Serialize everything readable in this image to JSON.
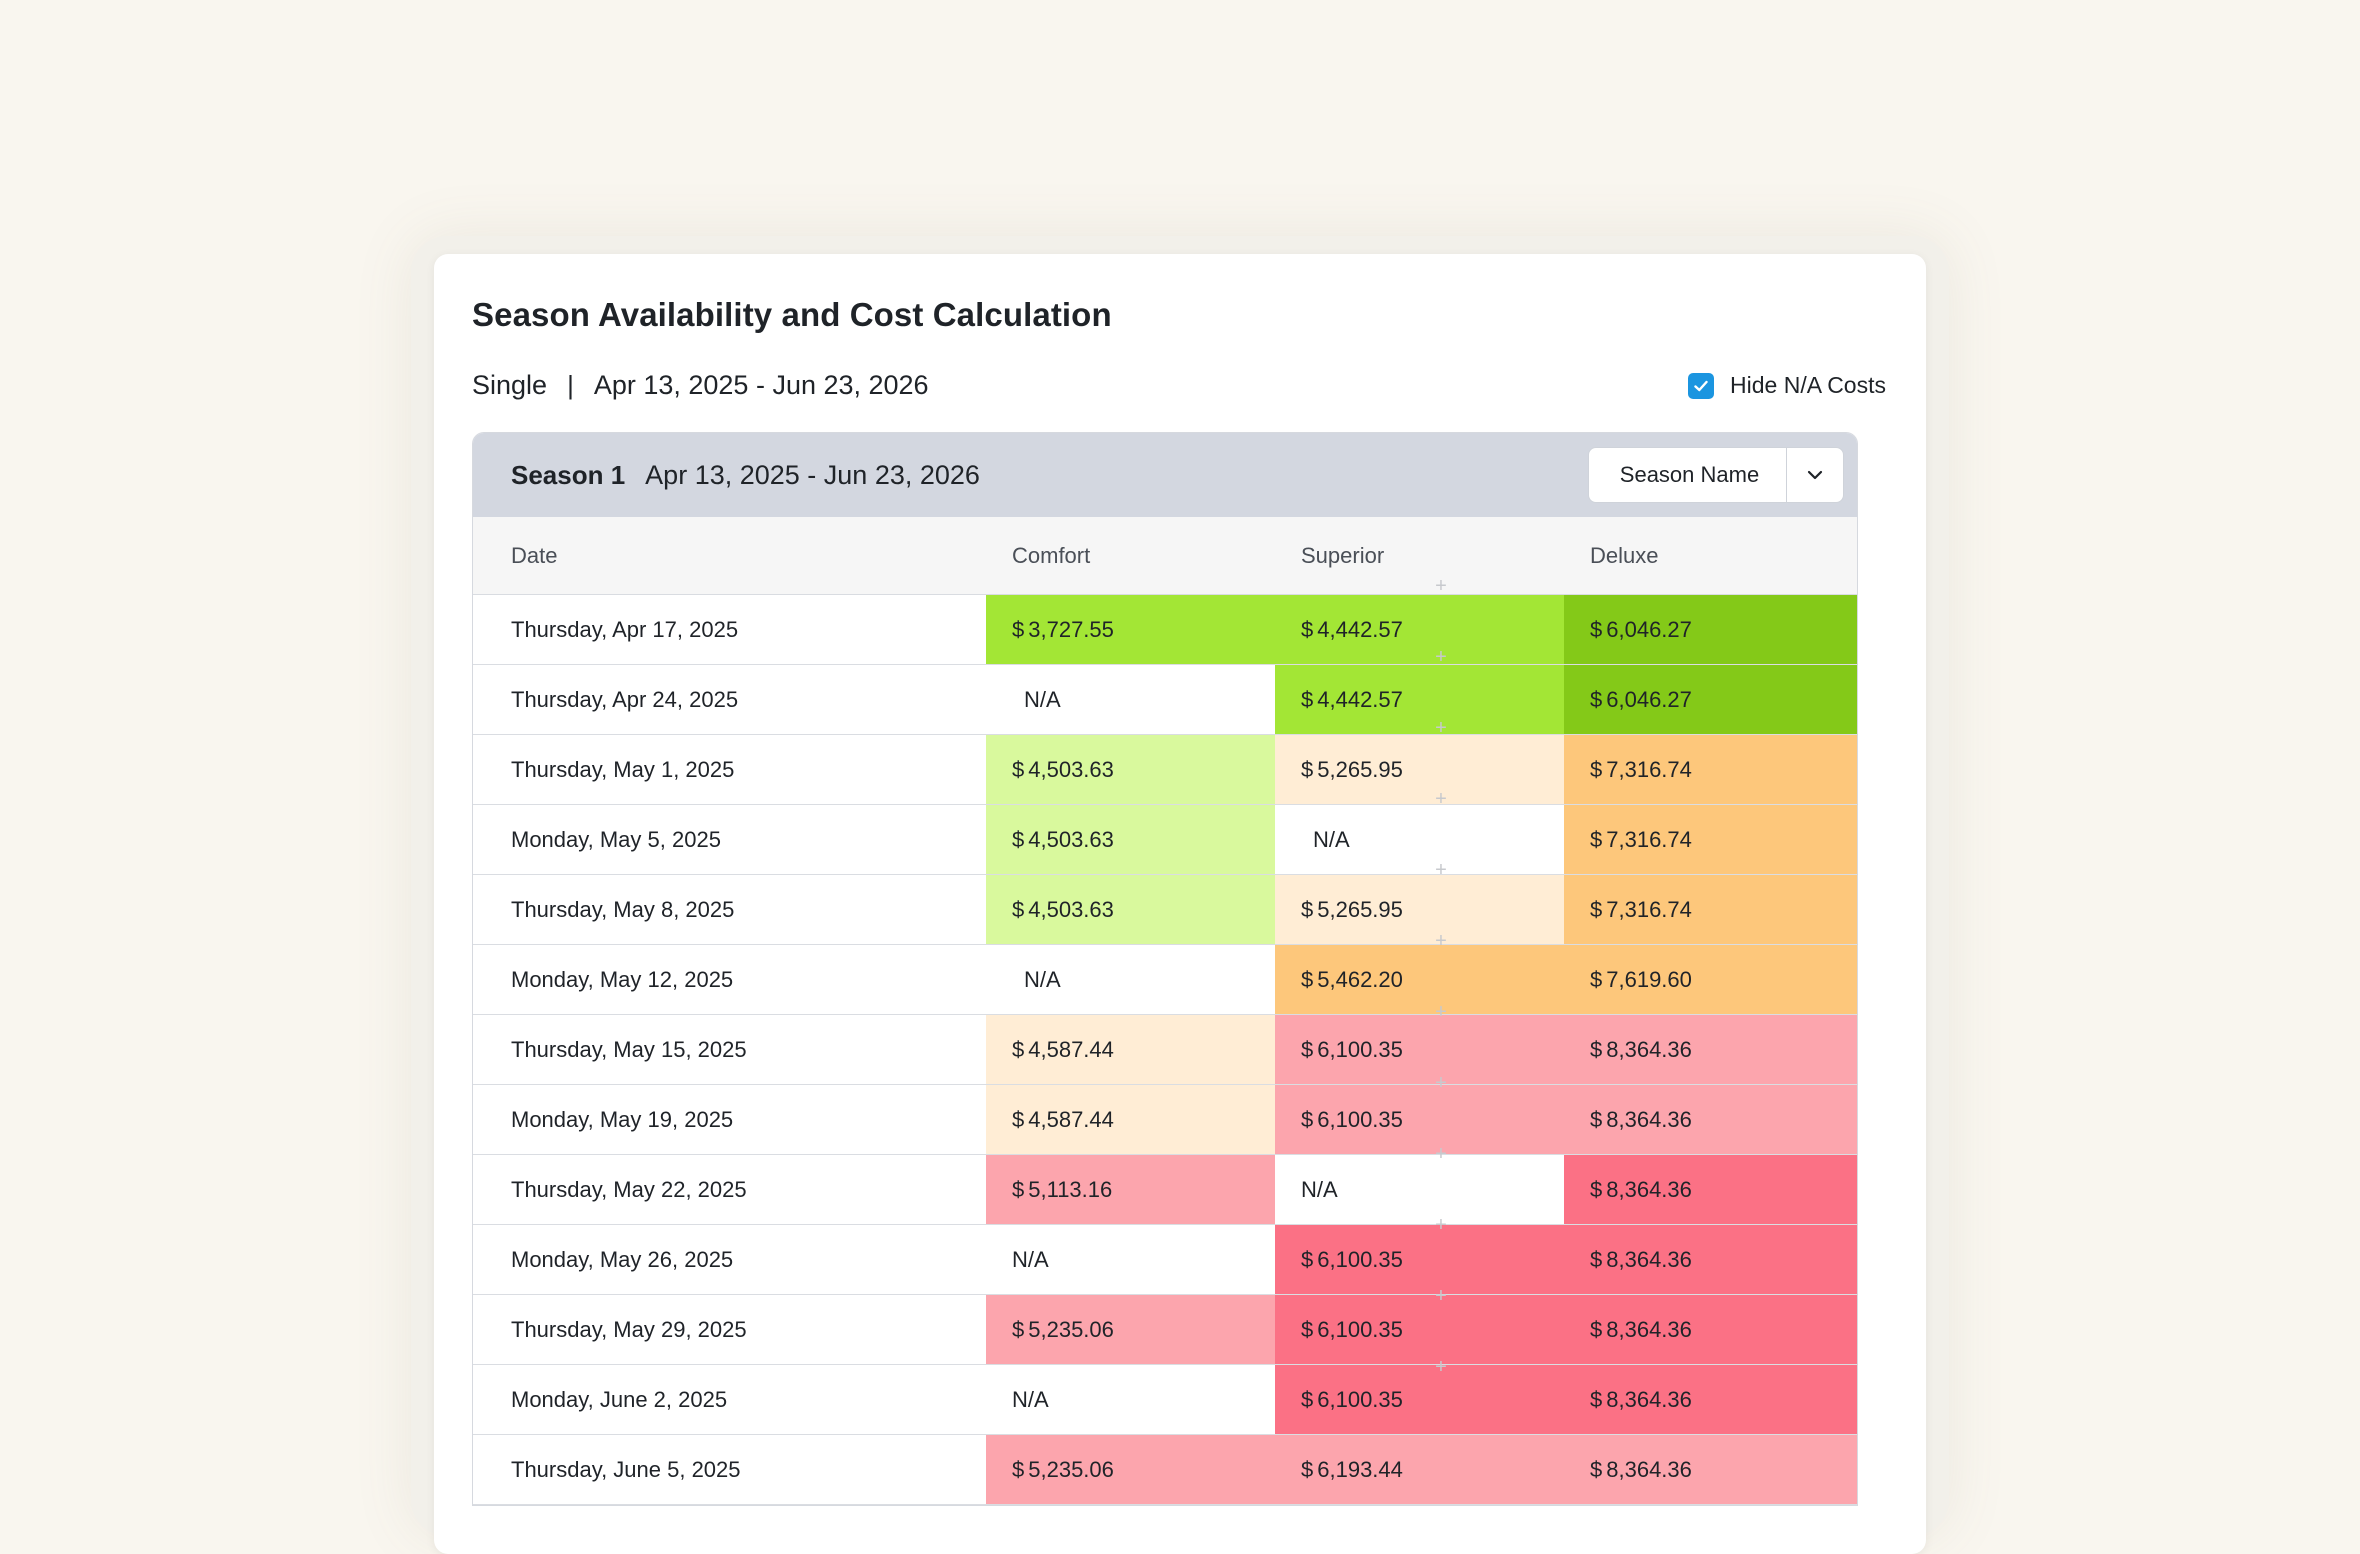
{
  "title": "Season Availability and Cost Calculation",
  "room_type": "Single",
  "subtitle_separator": "|",
  "date_range": "Apr 13, 2025 - Jun 23, 2026",
  "hide_na": {
    "label": "Hide N/A Costs",
    "checked": true
  },
  "season": {
    "label": "Season 1",
    "range": "Apr 13, 2025 - Jun 23, 2026",
    "select_value": "Season Name"
  },
  "columns": [
    "Date",
    "Comfort",
    "Superior",
    "Deluxe"
  ],
  "colors": {
    "green_strong": "#84c918",
    "green": "#a3e635",
    "green_light": "#d9f99d",
    "orange_light": "#ffedd5",
    "orange": "#fdc77b",
    "pink_light": "#fca5ad",
    "pink": "#fb7185",
    "accent_checkbox": "#1b95e0",
    "season_header_bg": "#d3d7e0"
  },
  "rows": [
    {
      "date": "Thursday, Apr 17, 2025",
      "comfort": {
        "value": "3,727.55",
        "color": "#a3e635"
      },
      "superior": {
        "value": "4,442.57",
        "color": "#a3e635"
      },
      "deluxe": {
        "value": "6,046.27",
        "color": "#84c918"
      }
    },
    {
      "date": "Thursday, Apr 24, 2025",
      "comfort": {
        "value": "N/A",
        "color": "#ffffff",
        "indent": true
      },
      "superior": {
        "value": "4,442.57",
        "color": "#a3e635"
      },
      "deluxe": {
        "value": "6,046.27",
        "color": "#84c918"
      }
    },
    {
      "date": "Thursday, May 1, 2025",
      "comfort": {
        "value": "4,503.63",
        "color": "#d9f99d"
      },
      "superior": {
        "value": "5,265.95",
        "color": "#ffedd5"
      },
      "deluxe": {
        "value": "7,316.74",
        "color": "#fdc77b"
      }
    },
    {
      "date": "Monday, May 5, 2025",
      "comfort": {
        "value": "4,503.63",
        "color": "#d9f99d"
      },
      "superior": {
        "value": "N/A",
        "color": "#ffffff",
        "indent": true
      },
      "deluxe": {
        "value": "7,316.74",
        "color": "#fdc77b"
      }
    },
    {
      "date": "Thursday, May 8, 2025",
      "comfort": {
        "value": "4,503.63",
        "color": "#d9f99d"
      },
      "superior": {
        "value": "5,265.95",
        "color": "#ffedd5"
      },
      "deluxe": {
        "value": "7,316.74",
        "color": "#fdc77b"
      }
    },
    {
      "date": "Monday, May 12, 2025",
      "comfort": {
        "value": "N/A",
        "color": "#ffffff",
        "indent": true
      },
      "superior": {
        "value": "5,462.20",
        "color": "#fdc77b"
      },
      "deluxe": {
        "value": "7,619.60",
        "color": "#fdc77b"
      }
    },
    {
      "date": "Thursday, May 15, 2025",
      "comfort": {
        "value": "4,587.44",
        "color": "#ffedd5"
      },
      "superior": {
        "value": "6,100.35",
        "color": "#fca5ad"
      },
      "deluxe": {
        "value": "8,364.36",
        "color": "#fca5ad"
      }
    },
    {
      "date": "Monday, May 19, 2025",
      "comfort": {
        "value": "4,587.44",
        "color": "#ffedd5"
      },
      "superior": {
        "value": "6,100.35",
        "color": "#fca5ad"
      },
      "deluxe": {
        "value": "8,364.36",
        "color": "#fca5ad"
      }
    },
    {
      "date": "Thursday, May 22, 2025",
      "comfort": {
        "value": "5,113.16",
        "color": "#fca5ad"
      },
      "superior": {
        "value": "N/A",
        "color": "#ffffff"
      },
      "deluxe": {
        "value": "8,364.36",
        "color": "#fb7185"
      }
    },
    {
      "date": "Monday, May 26, 2025",
      "comfort": {
        "value": "N/A",
        "color": "#ffffff"
      },
      "superior": {
        "value": "6,100.35",
        "color": "#fb7185"
      },
      "deluxe": {
        "value": "8,364.36",
        "color": "#fb7185"
      }
    },
    {
      "date": "Thursday, May 29, 2025",
      "comfort": {
        "value": "5,235.06",
        "color": "#fca5ad"
      },
      "superior": {
        "value": "6,100.35",
        "color": "#fb7185"
      },
      "deluxe": {
        "value": "8,364.36",
        "color": "#fb7185"
      }
    },
    {
      "date": "Monday, June 2, 2025",
      "comfort": {
        "value": "N/A",
        "color": "#ffffff"
      },
      "superior": {
        "value": "6,100.35",
        "color": "#fb7185"
      },
      "deluxe": {
        "value": "8,364.36",
        "color": "#fb7185"
      }
    },
    {
      "date": "Thursday, June 5, 2025",
      "comfort": {
        "value": "5,235.06",
        "color": "#fca5ad"
      },
      "superior": {
        "value": "6,193.44",
        "color": "#fca5ad"
      },
      "deluxe": {
        "value": "8,364.36",
        "color": "#fca5ad"
      }
    }
  ],
  "currency_symbol": "$",
  "row_add_icon": "plus-icon"
}
